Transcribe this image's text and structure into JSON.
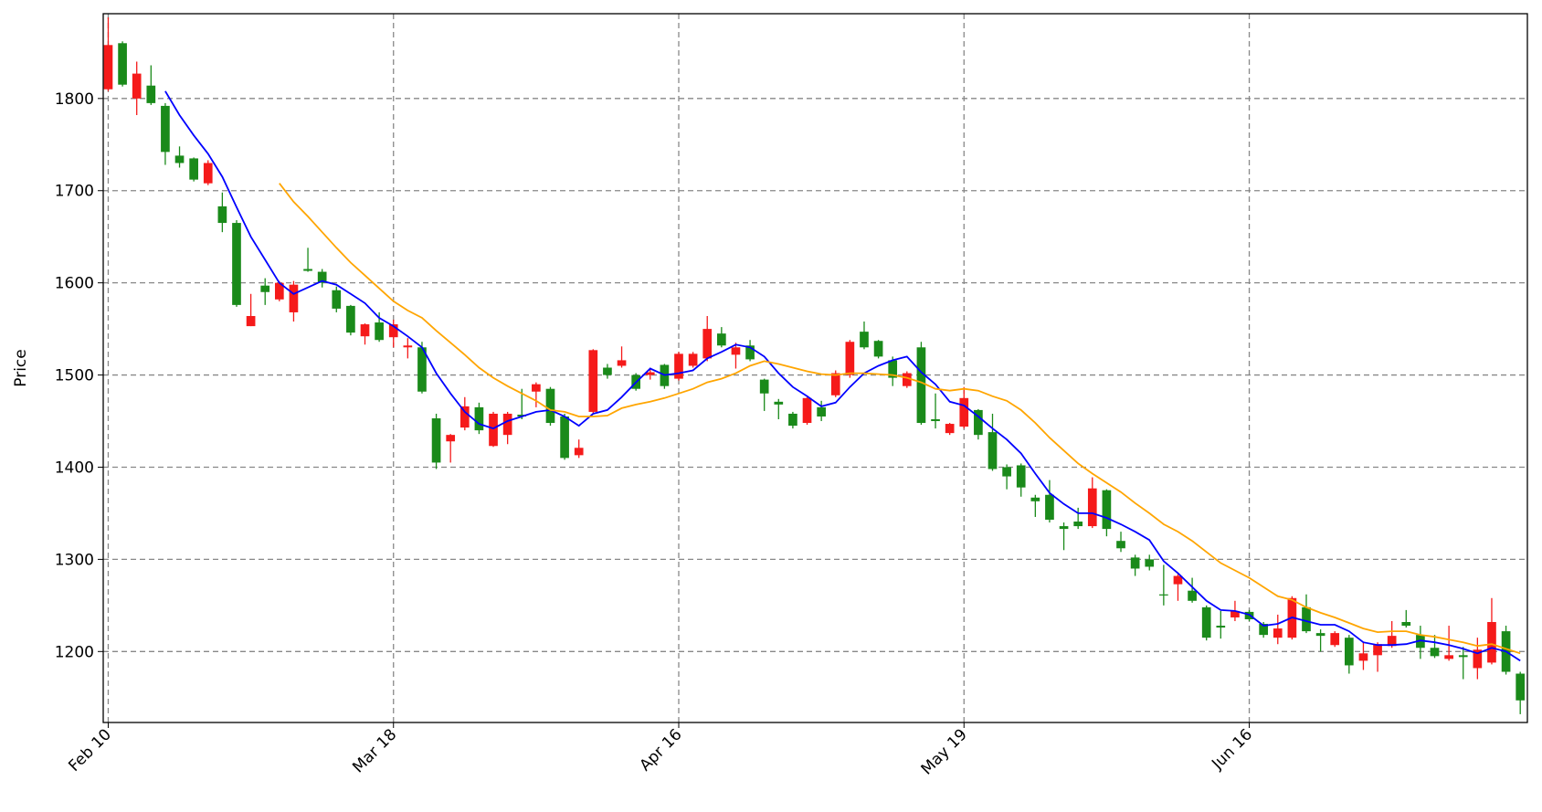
{
  "chart_data": {
    "type": "candlestick",
    "ylabel": "Price",
    "ylim": [
      1123,
      1892
    ],
    "yticks": [
      1200,
      1300,
      1400,
      1500,
      1600,
      1700,
      1800
    ],
    "xlim": [
      -0.35,
      99.5
    ],
    "xticks": [
      {
        "value": 0,
        "label": "Feb 10"
      },
      {
        "value": 20,
        "label": "Mar 18"
      },
      {
        "value": 40,
        "label": "Apr 16"
      },
      {
        "value": 60,
        "label": "May 19"
      },
      {
        "value": 80,
        "label": "Jun 16"
      }
    ],
    "grid": true,
    "up_color": "#f51a1a",
    "down_color": "#1a8a1a",
    "candles": {
      "open": [
        1810,
        1860,
        1800,
        1814,
        1792,
        1738,
        1735,
        1708,
        1683,
        1665,
        1553,
        1597,
        1582,
        1568,
        1615,
        1612,
        1592,
        1575,
        1542,
        1557,
        1541,
        1530,
        1530,
        1453,
        1428,
        1443,
        1465,
        1423,
        1435,
        1457,
        1482,
        1485,
        1455,
        1413,
        1460,
        1508,
        1510,
        1500,
        1500,
        1511,
        1496,
        1510,
        1518,
        1545,
        1522,
        1532,
        1495,
        1471,
        1458,
        1448,
        1465,
        1478,
        1500,
        1547,
        1537,
        1516,
        1488,
        1530,
        1452,
        1437,
        1444,
        1462,
        1438,
        1400,
        1402,
        1367,
        1370,
        1336,
        1341,
        1336,
        1375,
        1320,
        1302,
        1300,
        1262,
        1273,
        1266,
        1248,
        1228,
        1237,
        1243,
        1230,
        1215,
        1215,
        1248,
        1220,
        1207,
        1215,
        1190,
        1196,
        1206,
        1232,
        1218,
        1204,
        1192,
        1196,
        1182,
        1188,
        1222,
        1176
      ],
      "high": [
        1888,
        1862,
        1840,
        1836,
        1795,
        1748,
        1736,
        1733,
        1698,
        1668,
        1588,
        1605,
        1602,
        1602,
        1638,
        1615,
        1596,
        1576,
        1556,
        1568,
        1560,
        1540,
        1536,
        1458,
        1436,
        1476,
        1470,
        1460,
        1460,
        1485,
        1492,
        1487,
        1458,
        1430,
        1528,
        1512,
        1531,
        1502,
        1508,
        1512,
        1525,
        1525,
        1564,
        1552,
        1535,
        1538,
        1496,
        1474,
        1460,
        1476,
        1472,
        1505,
        1538,
        1558,
        1538,
        1520,
        1504,
        1536,
        1480,
        1448,
        1487,
        1463,
        1458,
        1403,
        1404,
        1370,
        1386,
        1340,
        1356,
        1389,
        1376,
        1330,
        1305,
        1305,
        1294,
        1284,
        1280,
        1250,
        1244,
        1255,
        1245,
        1232,
        1240,
        1260,
        1262,
        1224,
        1222,
        1218,
        1210,
        1210,
        1233,
        1245,
        1228,
        1218,
        1228,
        1205,
        1215,
        1258,
        1228,
        1178
      ],
      "low": [
        1808,
        1813,
        1782,
        1793,
        1728,
        1725,
        1710,
        1706,
        1655,
        1574,
        1553,
        1576,
        1580,
        1558,
        1612,
        1595,
        1568,
        1543,
        1533,
        1536,
        1530,
        1518,
        1480,
        1398,
        1405,
        1440,
        1436,
        1422,
        1425,
        1452,
        1465,
        1445,
        1408,
        1410,
        1458,
        1496,
        1508,
        1483,
        1495,
        1485,
        1494,
        1508,
        1515,
        1530,
        1507,
        1515,
        1461,
        1452,
        1442,
        1446,
        1450,
        1476,
        1497,
        1528,
        1518,
        1488,
        1486,
        1446,
        1442,
        1435,
        1442,
        1430,
        1396,
        1376,
        1368,
        1346,
        1340,
        1310,
        1333,
        1334,
        1325,
        1308,
        1282,
        1288,
        1250,
        1255,
        1253,
        1212,
        1214,
        1233,
        1233,
        1215,
        1208,
        1213,
        1220,
        1200,
        1205,
        1176,
        1180,
        1178,
        1204,
        1226,
        1192,
        1193,
        1190,
        1170,
        1170,
        1186,
        1175,
        1132
      ],
      "close": [
        1858,
        1815,
        1827,
        1795,
        1742,
        1730,
        1712,
        1730,
        1665,
        1576,
        1564,
        1590,
        1600,
        1598,
        1613,
        1600,
        1572,
        1546,
        1555,
        1538,
        1555,
        1532,
        1482,
        1405,
        1435,
        1466,
        1440,
        1458,
        1458,
        1455,
        1490,
        1448,
        1410,
        1421,
        1527,
        1500,
        1516,
        1485,
        1503,
        1488,
        1523,
        1523,
        1550,
        1532,
        1530,
        1517,
        1480,
        1468,
        1445,
        1475,
        1455,
        1502,
        1536,
        1530,
        1520,
        1497,
        1502,
        1448,
        1450,
        1447,
        1475,
        1435,
        1398,
        1390,
        1378,
        1363,
        1343,
        1333,
        1336,
        1377,
        1333,
        1312,
        1290,
        1292,
        1261,
        1282,
        1255,
        1215,
        1226,
        1244,
        1235,
        1218,
        1225,
        1258,
        1222,
        1217,
        1220,
        1185,
        1198,
        1208,
        1217,
        1228,
        1204,
        1195,
        1196,
        1194,
        1202,
        1232,
        1178,
        1147
      ]
    },
    "lines": [
      {
        "color": "#0000ff",
        "values": [
          null,
          null,
          null,
          null,
          1808,
          1782,
          1760,
          1740,
          1715,
          1682,
          1650,
          1625,
          1600,
          1588,
          1595,
          1602,
          1598,
          1588,
          1578,
          1562,
          1553,
          1542,
          1530,
          1502,
          1480,
          1460,
          1447,
          1442,
          1450,
          1455,
          1460,
          1462,
          1455,
          1445,
          1458,
          1462,
          1476,
          1492,
          1507,
          1500,
          1502,
          1505,
          1518,
          1525,
          1533,
          1530,
          1520,
          1502,
          1487,
          1477,
          1466,
          1470,
          1487,
          1502,
          1510,
          1516,
          1520,
          1503,
          1490,
          1471,
          1467,
          1455,
          1442,
          1430,
          1415,
          1393,
          1372,
          1360,
          1350,
          1350,
          1345,
          1338,
          1330,
          1321,
          1298,
          1285,
          1270,
          1255,
          1245,
          1244,
          1240,
          1228,
          1230,
          1237,
          1233,
          1229,
          1229,
          1222,
          1210,
          1207,
          1207,
          1208,
          1212,
          1210,
          1207,
          1203,
          1198,
          1204,
          1200,
          1190
        ]
      },
      {
        "color": "#ffa500",
        "values": [
          null,
          null,
          null,
          null,
          null,
          null,
          null,
          null,
          null,
          null,
          null,
          null,
          1708,
          1688,
          1672,
          1655,
          1638,
          1622,
          1608,
          1594,
          1580,
          1570,
          1562,
          1548,
          1535,
          1522,
          1508,
          1497,
          1488,
          1480,
          1472,
          1462,
          1460,
          1455,
          1455,
          1456,
          1464,
          1468,
          1471,
          1475,
          1480,
          1485,
          1492,
          1496,
          1502,
          1510,
          1515,
          1512,
          1508,
          1504,
          1501,
          1500,
          1502,
          1502,
          1501,
          1500,
          1497,
          1492,
          1485,
          1483,
          1485,
          1483,
          1477,
          1472,
          1462,
          1448,
          1432,
          1418,
          1404,
          1393,
          1383,
          1373,
          1361,
          1350,
          1338,
          1330,
          1320,
          1308,
          1296,
          1288,
          1280,
          1270,
          1260,
          1256,
          1248,
          1242,
          1237,
          1231,
          1225,
          1221,
          1222,
          1222,
          1218,
          1216,
          1213,
          1210,
          1206,
          1208,
          1203,
          1198
        ]
      }
    ]
  }
}
